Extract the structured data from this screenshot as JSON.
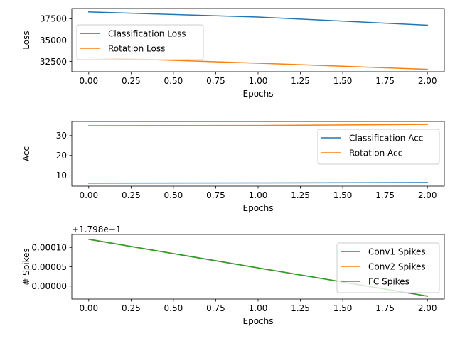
{
  "colors": {
    "blue": "#1f77b4",
    "orange": "#ff7f0e",
    "green": "#2ca02c"
  },
  "chart_data": [
    {
      "type": "line",
      "xlabel": "Epochs",
      "ylabel": "Loss",
      "xlim": [
        -0.1,
        2.1
      ],
      "ylim": [
        31300,
        38700
      ],
      "xticks": [
        0,
        0.25,
        0.5,
        0.75,
        1.0,
        1.25,
        1.5,
        1.75,
        2.0
      ],
      "xtick_labels": [
        "0.00",
        "0.25",
        "0.50",
        "0.75",
        "1.00",
        "1.25",
        "1.50",
        "1.75",
        "2.00"
      ],
      "yticks": [
        32500,
        35000,
        37500
      ],
      "ytick_labels": [
        "32500",
        "35000",
        "37500"
      ],
      "legend": "upper-left",
      "x": [
        0,
        1,
        2
      ],
      "series": [
        {
          "name": "Classification Loss",
          "color": "blue",
          "values": [
            38300,
            37700,
            36750
          ]
        },
        {
          "name": "Rotation Loss",
          "color": "orange",
          "values": [
            32950,
            32300,
            31580
          ]
        }
      ]
    },
    {
      "type": "line",
      "xlabel": "Epochs",
      "ylabel": "Acc",
      "xlim": [
        -0.1,
        2.1
      ],
      "ylim": [
        4.5,
        37.1
      ],
      "xticks": [
        0,
        0.25,
        0.5,
        0.75,
        1.0,
        1.25,
        1.5,
        1.75,
        2.0
      ],
      "xtick_labels": [
        "0.00",
        "0.25",
        "0.50",
        "0.75",
        "1.00",
        "1.25",
        "1.50",
        "1.75",
        "2.00"
      ],
      "yticks": [
        10,
        20,
        30
      ],
      "ytick_labels": [
        "10",
        "20",
        "30"
      ],
      "legend": "center-right",
      "x": [
        0,
        1,
        2
      ],
      "series": [
        {
          "name": "Classification Acc",
          "color": "blue",
          "values": [
            6.0,
            6.1,
            6.3
          ]
        },
        {
          "name": "Rotation Acc",
          "color": "orange",
          "values": [
            35.0,
            35.1,
            35.6
          ]
        }
      ]
    },
    {
      "type": "line",
      "xlabel": "Epochs",
      "ylabel": "# Spikes",
      "offset_label": "+1.798e−1",
      "xlim": [
        -0.1,
        2.1
      ],
      "ylim": [
        -3.35e-05,
        0.0001335
      ],
      "xticks": [
        0,
        0.25,
        0.5,
        0.75,
        1.0,
        1.25,
        1.5,
        1.75,
        2.0
      ],
      "xtick_labels": [
        "0.00",
        "0.25",
        "0.50",
        "0.75",
        "1.00",
        "1.25",
        "1.50",
        "1.75",
        "2.00"
      ],
      "yticks": [
        0,
        5e-05,
        0.0001
      ],
      "ytick_labels": [
        "0.00000",
        "0.00005",
        "0.00010"
      ],
      "legend": "upper-right",
      "x": [
        0,
        1,
        2
      ],
      "series": [
        {
          "name": "Conv1 Spikes",
          "color": "blue",
          "values": [
            0.000121,
            4.7e-05,
            -2.6e-05
          ]
        },
        {
          "name": "Conv2 Spikes",
          "color": "orange",
          "values": [
            0.000121,
            4.7e-05,
            -2.6e-05
          ]
        },
        {
          "name": "FC Spikes",
          "color": "green",
          "values": [
            0.000121,
            4.7e-05,
            -2.6e-05
          ]
        }
      ]
    }
  ]
}
